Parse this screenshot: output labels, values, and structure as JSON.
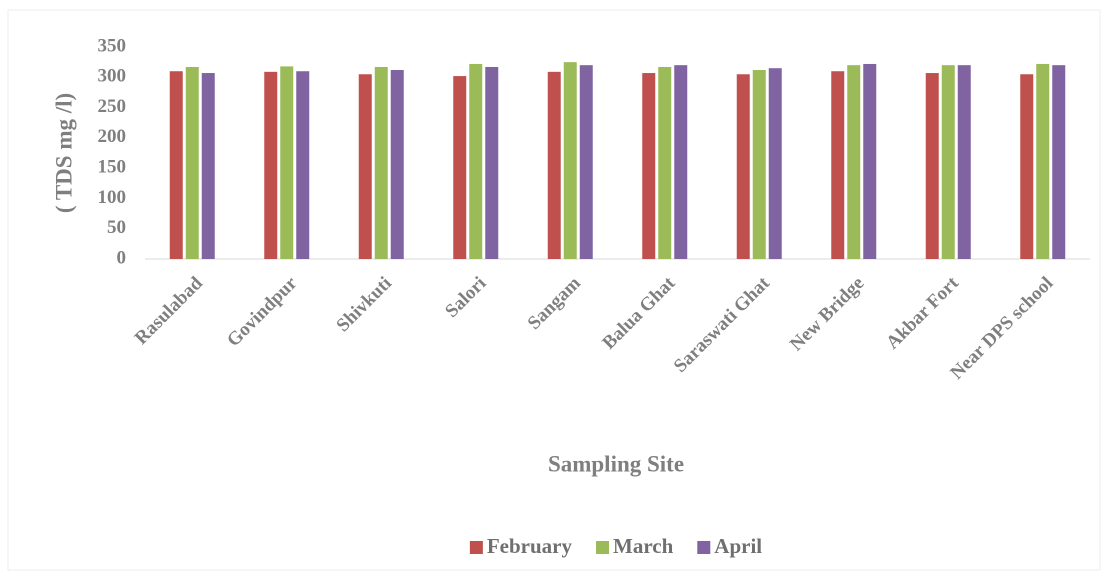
{
  "chart_data": {
    "type": "bar",
    "x_label": "Sampling Site",
    "y_label": "( TDS mg /l)",
    "categories": [
      "Rasulabad",
      "Govindpur",
      "Shivkuti",
      "Salori",
      "Sangam",
      "Balua Ghat",
      "Saraswati Ghat",
      "New Bridge",
      "Akbar Fort",
      "Near DPS school"
    ],
    "series": [
      {
        "name": "February",
        "color": "#c0504d",
        "values": [
          310,
          309,
          305,
          302,
          309,
          307,
          305,
          310,
          307,
          305
        ]
      },
      {
        "name": "March",
        "color": "#9bbb59",
        "values": [
          317,
          318,
          317,
          322,
          325,
          317,
          312,
          320,
          320,
          322
        ]
      },
      {
        "name": "April",
        "color": "#8064a2",
        "values": [
          307,
          310,
          312,
          317,
          320,
          320,
          315,
          322,
          320,
          320
        ]
      }
    ],
    "ylim": [
      0,
      350
    ],
    "yticks": [
      0,
      50,
      100,
      150,
      200,
      250,
      300,
      350
    ],
    "grid": false,
    "legend": "bottom"
  }
}
